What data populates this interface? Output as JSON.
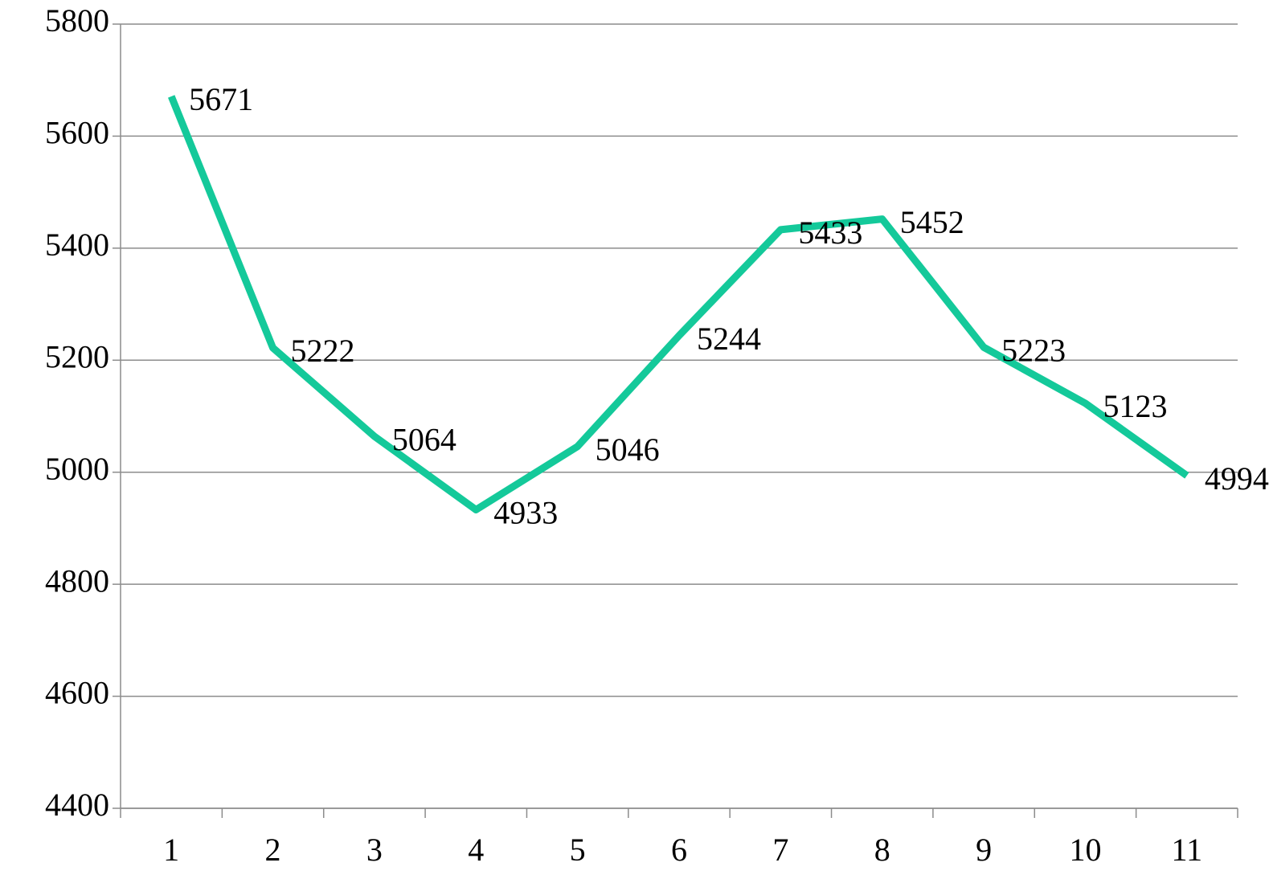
{
  "chart_data": {
    "type": "line",
    "categories": [
      "1",
      "2",
      "3",
      "4",
      "5",
      "6",
      "7",
      "8",
      "9",
      "10",
      "11"
    ],
    "series": [
      {
        "color": "#14c99a",
        "values": [
          5671,
          5222,
          5064,
          4933,
          5046,
          5244,
          5433,
          5452,
          5223,
          5123,
          4994
        ]
      }
    ],
    "ylim": [
      4400,
      5800
    ],
    "yticks": [
      4400,
      4600,
      4800,
      5000,
      5200,
      5400,
      5600,
      5800
    ],
    "grid": true
  }
}
